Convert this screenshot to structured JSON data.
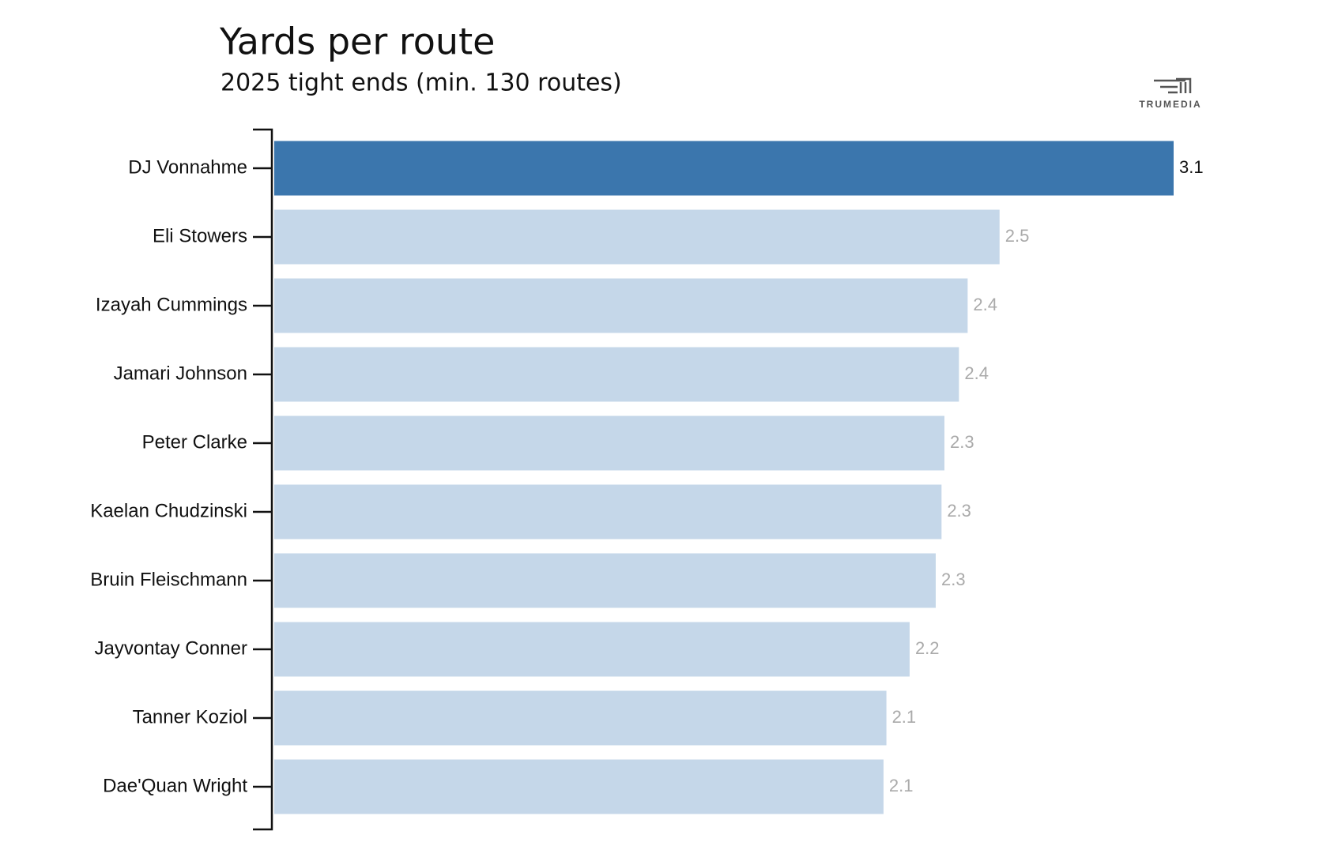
{
  "chart_data": {
    "type": "bar",
    "orientation": "horizontal",
    "title": "Yards per route",
    "subtitle": "2025 tight ends (min. 130 routes)",
    "logo": "TRUMEDIA",
    "categories": [
      "DJ Vonnahme",
      "Eli Stowers",
      "Izayah Cummings",
      "Jamari Johnson",
      "Peter Clarke",
      "Kaelan Chudzinski",
      "Bruin Fleischmann",
      "Jayvontay Conner",
      "Tanner Koziol",
      "Dae'Quan Wright"
    ],
    "values": [
      3.1,
      2.5,
      2.39,
      2.36,
      2.31,
      2.3,
      2.28,
      2.19,
      2.11,
      2.1
    ],
    "value_labels": [
      "3.1",
      "2.5",
      "2.4",
      "2.4",
      "2.3",
      "2.3",
      "2.3",
      "2.2",
      "2.1",
      "2.1"
    ],
    "colors": [
      "#3b76ad",
      "#c5d7e9",
      "#c5d7e9",
      "#c5d7e9",
      "#c5d7e9",
      "#c5d7e9",
      "#c5d7e9",
      "#c5d7e9",
      "#c5d7e9",
      "#c5d7e9"
    ],
    "value_label_colors": [
      "#111111",
      "#aaaaaa",
      "#aaaaaa",
      "#aaaaaa",
      "#aaaaaa",
      "#aaaaaa",
      "#aaaaaa",
      "#aaaaaa",
      "#aaaaaa",
      "#aaaaaa"
    ],
    "xlim": [
      0,
      3.1
    ]
  }
}
